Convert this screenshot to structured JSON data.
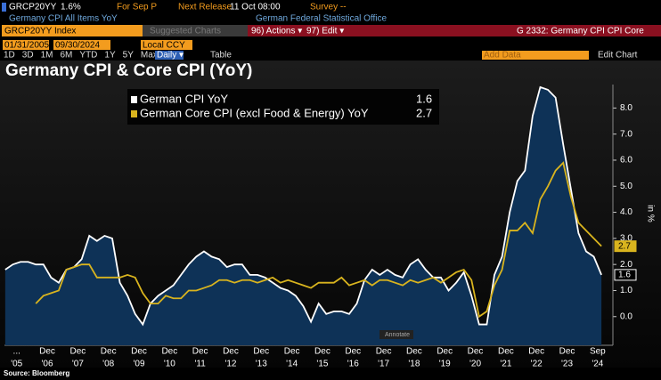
{
  "terminal": {
    "ticker": "GRCP20YY",
    "last": "1.6%",
    "period": "For Sep P",
    "release_label": "Next Release",
    "release": "11 Oct 08:00",
    "survey": "Survey --",
    "description": "Germany CPI All Items YoY",
    "source_office": "German Federal Statistical Office",
    "security": "GRCP20YY Index",
    "suggested": "Suggested Charts",
    "actions": "96) Actions ▾",
    "edit": "97) Edit ▾",
    "function": "G 2332: Germany CPI CPI Core",
    "start_date": "01/31/2005",
    "end_date": "09/30/2024",
    "currency": "Local CCY",
    "ranges": [
      "1D",
      "3D",
      "1M",
      "6M",
      "YTD",
      "1Y",
      "5Y",
      "Max"
    ],
    "frequency": "Daily ▾",
    "table": "Table",
    "add_data": "Add Data",
    "edit_chart": "Edit Chart",
    "annotate": "Annotate",
    "footer": "Source: Bloomberg"
  },
  "chart_data": {
    "type": "area-line",
    "title": "Germany CPI & Core CPI (YoY)",
    "y_label": "in %",
    "xlim": [
      2005.1,
      2025.0
    ],
    "ylim": [
      -1.1,
      8.9
    ],
    "yticks": [
      {
        "value": 0,
        "label": "0.0"
      },
      {
        "value": 1,
        "label": "1.0"
      },
      {
        "value": 2,
        "label": "2.0"
      },
      {
        "value": 3,
        "label": "3.0"
      },
      {
        "value": 4,
        "label": "4.0"
      },
      {
        "value": 5,
        "label": "5.0"
      },
      {
        "value": 6,
        "label": "6.0"
      },
      {
        "value": 7,
        "label": "7.0"
      },
      {
        "value": 8,
        "label": "8.0"
      }
    ],
    "xticks": [
      {
        "value": 2005.5,
        "label": "...",
        "year": "'05"
      },
      {
        "value": 2006.5,
        "label": "Dec",
        "year": "'06"
      },
      {
        "value": 2007.5,
        "label": "Dec",
        "year": "'07"
      },
      {
        "value": 2008.5,
        "label": "Dec",
        "year": "'08"
      },
      {
        "value": 2009.5,
        "label": "Dec",
        "year": "'09"
      },
      {
        "value": 2010.5,
        "label": "Dec",
        "year": "'10"
      },
      {
        "value": 2011.5,
        "label": "Dec",
        "year": "'11"
      },
      {
        "value": 2012.5,
        "label": "Dec",
        "year": "'12"
      },
      {
        "value": 2013.5,
        "label": "Dec",
        "year": "'13"
      },
      {
        "value": 2014.5,
        "label": "Dec",
        "year": "'14"
      },
      {
        "value": 2015.5,
        "label": "Dec",
        "year": "'15"
      },
      {
        "value": 2016.5,
        "label": "Dec",
        "year": "'16"
      },
      {
        "value": 2017.5,
        "label": "Dec",
        "year": "'17"
      },
      {
        "value": 2018.5,
        "label": "Dec",
        "year": "'18"
      },
      {
        "value": 2019.5,
        "label": "Dec",
        "year": "'19"
      },
      {
        "value": 2020.5,
        "label": "Dec",
        "year": "'20"
      },
      {
        "value": 2021.5,
        "label": "Dec",
        "year": "'21"
      },
      {
        "value": 2022.5,
        "label": "Dec",
        "year": "'22"
      },
      {
        "value": 2023.5,
        "label": "Dec",
        "year": "'23"
      },
      {
        "value": 2024.5,
        "label": "Sep",
        "year": "'24"
      }
    ],
    "x": [
      2005.125,
      2005.375,
      2005.625,
      2005.875,
      2006.125,
      2006.375,
      2006.625,
      2006.875,
      2007.125,
      2007.375,
      2007.625,
      2007.875,
      2008.125,
      2008.375,
      2008.625,
      2008.875,
      2009.125,
      2009.375,
      2009.625,
      2009.875,
      2010.125,
      2010.375,
      2010.625,
      2010.875,
      2011.125,
      2011.375,
      2011.625,
      2011.875,
      2012.125,
      2012.375,
      2012.625,
      2012.875,
      2013.125,
      2013.375,
      2013.625,
      2013.875,
      2014.125,
      2014.375,
      2014.625,
      2014.875,
      2015.125,
      2015.375,
      2015.625,
      2015.875,
      2016.125,
      2016.375,
      2016.625,
      2016.875,
      2017.125,
      2017.375,
      2017.625,
      2017.875,
      2018.125,
      2018.375,
      2018.625,
      2018.875,
      2019.125,
      2019.375,
      2019.625,
      2019.875,
      2020.125,
      2020.375,
      2020.625,
      2020.875,
      2021.125,
      2021.375,
      2021.625,
      2021.875,
      2022.125,
      2022.375,
      2022.625,
      2022.875,
      2023.125,
      2023.375,
      2023.625,
      2023.875,
      2024.125,
      2024.375,
      2024.625
    ],
    "series": [
      {
        "name": "German CPI YoY",
        "color": "#ffffff",
        "fill": "#0e3257",
        "values": [
          1.8,
          2.0,
          2.1,
          2.1,
          2.0,
          2.0,
          1.5,
          1.3,
          1.8,
          1.9,
          2.2,
          3.1,
          2.9,
          3.1,
          3.0,
          1.3,
          0.8,
          0.1,
          -0.3,
          0.5,
          0.8,
          1.0,
          1.2,
          1.6,
          2.0,
          2.3,
          2.5,
          2.3,
          2.2,
          1.9,
          2.0,
          2.0,
          1.6,
          1.6,
          1.5,
          1.3,
          1.1,
          1.0,
          0.8,
          0.4,
          -0.2,
          0.5,
          0.1,
          0.2,
          0.2,
          0.1,
          0.5,
          1.4,
          1.8,
          1.6,
          1.8,
          1.6,
          1.5,
          2.0,
          2.2,
          1.8,
          1.5,
          1.5,
          1.0,
          1.3,
          1.7,
          0.8,
          -0.3,
          -0.3,
          1.6,
          2.3,
          4.0,
          5.2,
          5.6,
          7.7,
          8.8,
          8.7,
          8.4,
          6.6,
          4.9,
          3.2,
          2.5,
          2.3,
          1.6
        ]
      },
      {
        "name": "German Core CPI (excl Food & Energy) YoY",
        "color": "#d9b41e",
        "values": [
          null,
          null,
          null,
          null,
          0.5,
          0.8,
          0.9,
          1.0,
          1.8,
          1.9,
          2.0,
          2.0,
          1.5,
          1.5,
          1.5,
          1.5,
          1.6,
          1.5,
          0.9,
          0.5,
          0.5,
          0.8,
          0.7,
          0.7,
          1.0,
          1.0,
          1.1,
          1.2,
          1.4,
          1.4,
          1.3,
          1.4,
          1.4,
          1.3,
          1.4,
          1.5,
          1.3,
          1.4,
          1.3,
          1.2,
          1.1,
          1.3,
          1.3,
          1.3,
          1.5,
          1.2,
          1.3,
          1.4,
          1.2,
          1.4,
          1.4,
          1.3,
          1.2,
          1.4,
          1.3,
          1.4,
          1.5,
          1.3,
          1.5,
          1.7,
          1.8,
          1.4,
          0.0,
          0.2,
          1.2,
          1.8,
          3.3,
          3.3,
          3.6,
          3.2,
          4.5,
          5.0,
          5.6,
          5.9,
          4.6,
          3.6,
          3.3,
          3.0,
          2.7
        ]
      }
    ]
  }
}
